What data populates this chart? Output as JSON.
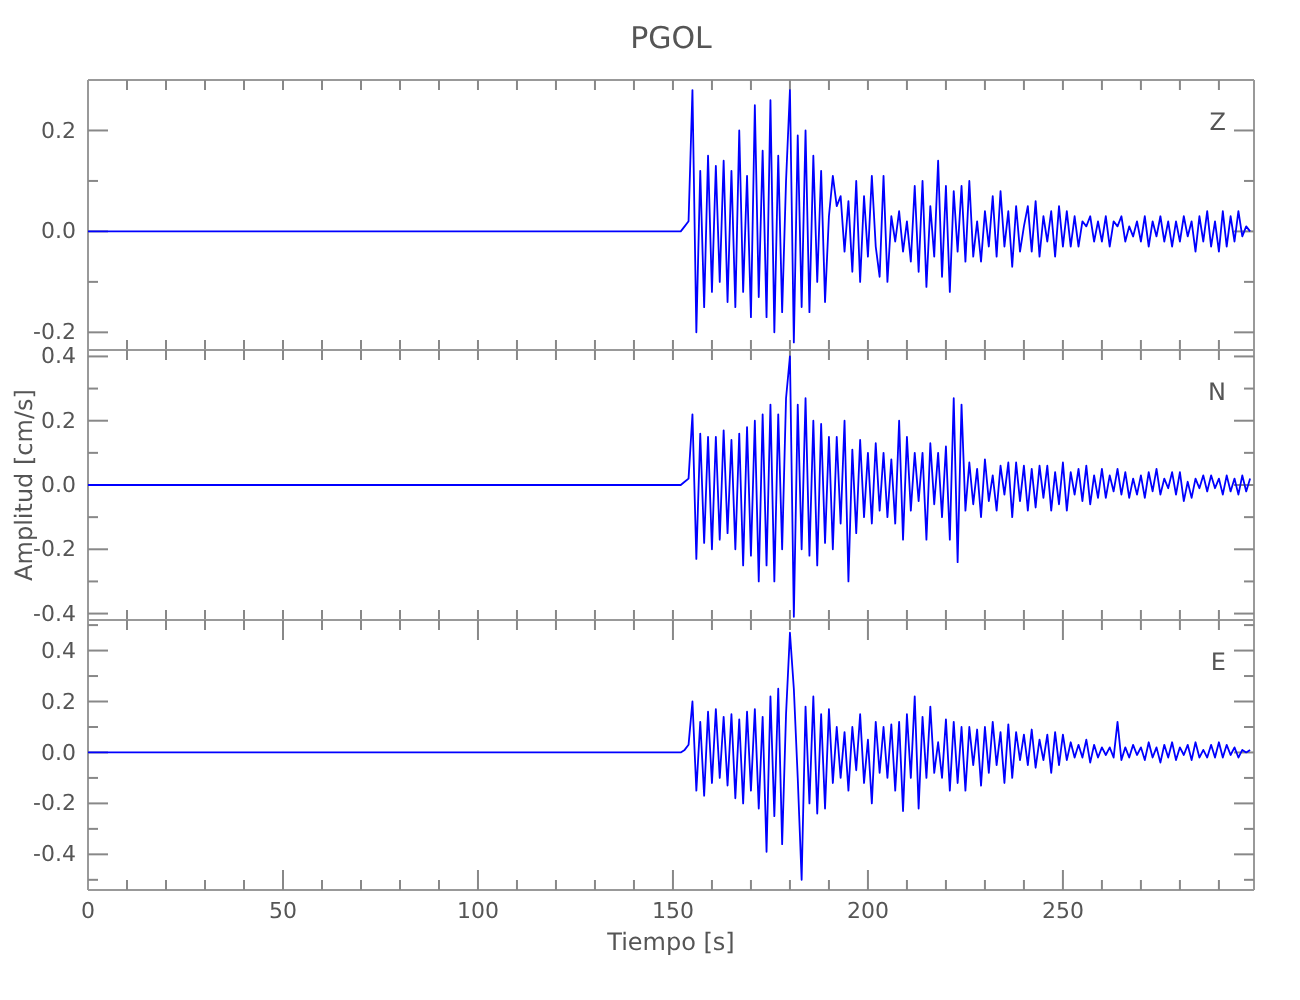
{
  "chart_data": [
    {
      "type": "line",
      "title": "PGOL",
      "annotations": [
        "Z"
      ],
      "tick_labels": "y",
      "xlim": [
        0,
        299
      ],
      "xticks": [
        {
          "value": 0,
          "label": null
        },
        {
          "value": 10,
          "label": null
        },
        {
          "value": 20,
          "label": null
        },
        {
          "value": 30,
          "label": null
        },
        {
          "value": 40,
          "label": null
        },
        {
          "value": 50,
          "label": null
        },
        {
          "value": 60,
          "label": null
        },
        {
          "value": 70,
          "label": null
        },
        {
          "value": 80,
          "label": null
        },
        {
          "value": 90,
          "label": null
        },
        {
          "value": 100,
          "label": null
        },
        {
          "value": 110,
          "label": null
        },
        {
          "value": 120,
          "label": null
        },
        {
          "value": 130,
          "label": null
        },
        {
          "value": 140,
          "label": null
        },
        {
          "value": 150,
          "label": null
        },
        {
          "value": 160,
          "label": null
        },
        {
          "value": 170,
          "label": null
        },
        {
          "value": 180,
          "label": null
        },
        {
          "value": 190,
          "label": null
        },
        {
          "value": 200,
          "label": null
        },
        {
          "value": 210,
          "label": null
        },
        {
          "value": 220,
          "label": null
        },
        {
          "value": 230,
          "label": null
        },
        {
          "value": 240,
          "label": null
        },
        {
          "value": 250,
          "label": null
        },
        {
          "value": 260,
          "label": null
        },
        {
          "value": 270,
          "label": null
        },
        {
          "value": 280,
          "label": null
        },
        {
          "value": 290,
          "label": null
        }
      ],
      "ylim": [
        -0.235,
        0.3
      ],
      "yticks": [
        {
          "value": -0.2,
          "label": "-0.2"
        },
        {
          "value": -0.1,
          "label": null
        },
        {
          "value": 0,
          "label": "0.0"
        },
        {
          "value": 0.1,
          "label": null
        },
        {
          "value": 0.2,
          "label": "0.2"
        }
      ],
      "x": [
        0,
        152,
        153,
        154,
        155,
        156,
        157,
        158,
        159,
        160,
        161,
        162,
        163,
        164,
        165,
        166,
        167,
        168,
        169,
        170,
        171,
        172,
        173,
        174,
        175,
        176,
        177,
        178,
        179,
        180,
        181,
        182,
        183,
        184,
        185,
        186,
        187,
        188,
        189,
        190,
        191,
        192,
        193,
        194,
        195,
        196,
        197,
        198,
        199,
        200,
        201,
        202,
        203,
        204,
        205,
        206,
        207,
        208,
        209,
        210,
        211,
        212,
        213,
        214,
        215,
        216,
        217,
        218,
        219,
        220,
        221,
        222,
        223,
        224,
        225,
        226,
        227,
        228,
        229,
        230,
        231,
        232,
        233,
        234,
        235,
        236,
        237,
        238,
        239,
        240,
        241,
        242,
        243,
        244,
        245,
        246,
        247,
        248,
        249,
        250,
        251,
        252,
        253,
        254,
        255,
        256,
        257,
        258,
        259,
        260,
        261,
        262,
        263,
        264,
        265,
        266,
        267,
        268,
        269,
        270,
        271,
        272,
        273,
        274,
        275,
        276,
        277,
        278,
        279,
        280,
        281,
        282,
        283,
        284,
        285,
        286,
        287,
        288,
        289,
        290,
        291,
        292,
        293,
        294,
        295,
        296,
        297,
        298
      ],
      "series": [
        {
          "color": "#0000ff",
          "values": [
            0,
            0,
            0.01,
            0.02,
            0.28,
            -0.2,
            0.12,
            -0.15,
            0.15,
            -0.12,
            0.13,
            -0.1,
            0.14,
            -0.14,
            0.12,
            -0.15,
            0.2,
            -0.12,
            0.11,
            -0.17,
            0.25,
            -0.13,
            0.16,
            -0.17,
            0.26,
            -0.2,
            0.15,
            -0.16,
            0.1,
            0.28,
            -0.22,
            0.19,
            -0.15,
            0.2,
            -0.16,
            0.15,
            -0.1,
            0.12,
            -0.14,
            0.03,
            0.11,
            0.05,
            0.07,
            -0.04,
            0.06,
            -0.08,
            0.1,
            -0.1,
            0.07,
            -0.05,
            0.11,
            -0.03,
            -0.09,
            0.11,
            -0.1,
            0.03,
            -0.02,
            0.04,
            -0.04,
            0.02,
            -0.06,
            0.09,
            -0.08,
            0.1,
            -0.11,
            0.05,
            -0.05,
            0.14,
            -0.09,
            0.09,
            -0.12,
            0.08,
            -0.04,
            0.09,
            -0.06,
            0.1,
            -0.05,
            0.02,
            -0.06,
            0.04,
            -0.03,
            0.07,
            -0.05,
            0.08,
            -0.03,
            0.04,
            -0.07,
            0.05,
            -0.04,
            0.01,
            0.05,
            -0.04,
            0.06,
            -0.05,
            0.03,
            -0.02,
            0.04,
            -0.05,
            0.05,
            -0.03,
            0.04,
            -0.03,
            0.03,
            -0.03,
            0.02,
            0.01,
            0.03,
            -0.02,
            0.02,
            -0.02,
            0.03,
            -0.03,
            0.02,
            0.01,
            0.03,
            -0.02,
            0.01,
            -0.01,
            0.02,
            -0.02,
            0.03,
            -0.03,
            0.02,
            -0.01,
            0.03,
            -0.02,
            0.02,
            -0.03,
            0.02,
            -0.02,
            0.03,
            -0.01,
            0.02,
            -0.04,
            0.03,
            -0.02,
            0.04,
            -0.03,
            0.02,
            -0.04,
            0.04,
            -0.03,
            0.03,
            -0.02,
            0.04,
            -0.01,
            0.01,
            0
          ]
        }
      ]
    },
    {
      "type": "line",
      "ylabel": "Amplitud [cm/s]",
      "annotations": [
        "N"
      ],
      "tick_labels": "y",
      "xlim": [
        0,
        299
      ],
      "xticks": [
        {
          "value": 0,
          "label": null
        },
        {
          "value": 10,
          "label": null
        },
        {
          "value": 20,
          "label": null
        },
        {
          "value": 30,
          "label": null
        },
        {
          "value": 40,
          "label": null
        },
        {
          "value": 50,
          "label": null
        },
        {
          "value": 60,
          "label": null
        },
        {
          "value": 70,
          "label": null
        },
        {
          "value": 80,
          "label": null
        },
        {
          "value": 90,
          "label": null
        },
        {
          "value": 100,
          "label": null
        },
        {
          "value": 110,
          "label": null
        },
        {
          "value": 120,
          "label": null
        },
        {
          "value": 130,
          "label": null
        },
        {
          "value": 140,
          "label": null
        },
        {
          "value": 150,
          "label": null
        },
        {
          "value": 160,
          "label": null
        },
        {
          "value": 170,
          "label": null
        },
        {
          "value": 180,
          "label": null
        },
        {
          "value": 190,
          "label": null
        },
        {
          "value": 200,
          "label": null
        },
        {
          "value": 210,
          "label": null
        },
        {
          "value": 220,
          "label": null
        },
        {
          "value": 230,
          "label": null
        },
        {
          "value": 240,
          "label": null
        },
        {
          "value": 250,
          "label": null
        },
        {
          "value": 260,
          "label": null
        },
        {
          "value": 270,
          "label": null
        },
        {
          "value": 280,
          "label": null
        },
        {
          "value": 290,
          "label": null
        }
      ],
      "ylim": [
        -0.42,
        0.42
      ],
      "yticks": [
        {
          "value": -0.4,
          "label": "-0.4"
        },
        {
          "value": -0.3,
          "label": null
        },
        {
          "value": -0.2,
          "label": "-0.2"
        },
        {
          "value": -0.1,
          "label": null
        },
        {
          "value": 0,
          "label": "0.0"
        },
        {
          "value": 0.1,
          "label": null
        },
        {
          "value": 0.2,
          "label": "0.2"
        },
        {
          "value": 0.3,
          "label": null
        },
        {
          "value": 0.4,
          "label": "0.4"
        }
      ],
      "x": [
        0,
        152,
        153,
        154,
        155,
        156,
        157,
        158,
        159,
        160,
        161,
        162,
        163,
        164,
        165,
        166,
        167,
        168,
        169,
        170,
        171,
        172,
        173,
        174,
        175,
        176,
        177,
        178,
        179,
        180,
        181,
        182,
        183,
        184,
        185,
        186,
        187,
        188,
        189,
        190,
        191,
        192,
        193,
        194,
        195,
        196,
        197,
        198,
        199,
        200,
        201,
        202,
        203,
        204,
        205,
        206,
        207,
        208,
        209,
        210,
        211,
        212,
        213,
        214,
        215,
        216,
        217,
        218,
        219,
        220,
        221,
        222,
        223,
        224,
        225,
        226,
        227,
        228,
        229,
        230,
        231,
        232,
        233,
        234,
        235,
        236,
        237,
        238,
        239,
        240,
        241,
        242,
        243,
        244,
        245,
        246,
        247,
        248,
        249,
        250,
        251,
        252,
        253,
        254,
        255,
        256,
        257,
        258,
        259,
        260,
        261,
        262,
        263,
        264,
        265,
        266,
        267,
        268,
        269,
        270,
        271,
        272,
        273,
        274,
        275,
        276,
        277,
        278,
        279,
        280,
        281,
        282,
        283,
        284,
        285,
        286,
        287,
        288,
        289,
        290,
        291,
        292,
        293,
        294,
        295,
        296,
        297,
        298
      ],
      "series": [
        {
          "color": "#0000ff",
          "values": [
            0,
            0,
            0.01,
            0.02,
            0.22,
            -0.23,
            0.16,
            -0.18,
            0.15,
            -0.2,
            0.15,
            -0.17,
            0.17,
            -0.15,
            0.14,
            -0.2,
            0.16,
            -0.25,
            0.18,
            -0.22,
            0.2,
            -0.3,
            0.22,
            -0.25,
            0.25,
            -0.3,
            0.22,
            -0.2,
            0.27,
            0.4,
            -0.41,
            0.25,
            -0.2,
            0.27,
            -0.22,
            0.2,
            -0.25,
            0.19,
            -0.18,
            0.15,
            -0.2,
            0.15,
            -0.12,
            0.2,
            -0.3,
            0.11,
            -0.15,
            0.14,
            -0.1,
            0.1,
            -0.12,
            0.13,
            -0.08,
            0.1,
            -0.1,
            0.08,
            -0.12,
            0.2,
            -0.17,
            0.15,
            -0.08,
            0.1,
            -0.05,
            0.1,
            -0.17,
            0.13,
            -0.06,
            0.1,
            -0.1,
            0.12,
            -0.17,
            0.27,
            -0.24,
            0.25,
            -0.08,
            0.07,
            -0.06,
            0.05,
            -0.1,
            0.08,
            -0.05,
            0.03,
            -0.08,
            0.06,
            -0.03,
            0.07,
            -0.1,
            0.07,
            -0.05,
            0.06,
            -0.08,
            0.05,
            -0.07,
            0.06,
            -0.04,
            0.06,
            -0.08,
            0.04,
            -0.06,
            0.07,
            -0.08,
            0.04,
            -0.03,
            0.05,
            -0.05,
            0.06,
            -0.06,
            0.03,
            -0.04,
            0.05,
            -0.04,
            0.03,
            -0.02,
            0.05,
            -0.03,
            0.04,
            -0.04,
            0.02,
            -0.03,
            0.03,
            -0.04,
            0.04,
            -0.02,
            0.05,
            -0.03,
            0.02,
            -0.01,
            0.04,
            -0.03,
            0.04,
            -0.05,
            0.01,
            -0.04,
            0.02,
            -0.01,
            0.03,
            -0.02,
            0.03,
            -0.01,
            0.02,
            -0.03,
            0.03,
            -0.02,
            0.02,
            -0.03,
            0.03,
            -0.02,
            0.02
          ]
        }
      ]
    },
    {
      "type": "line",
      "xlabel": "Tiempo [s]",
      "annotations": [
        "E"
      ],
      "xlim": [
        0,
        299
      ],
      "xticks": [
        {
          "value": 0,
          "label": "0"
        },
        {
          "value": 10,
          "label": null
        },
        {
          "value": 20,
          "label": null
        },
        {
          "value": 30,
          "label": null
        },
        {
          "value": 40,
          "label": null
        },
        {
          "value": 50,
          "label": "50"
        },
        {
          "value": 60,
          "label": null
        },
        {
          "value": 70,
          "label": null
        },
        {
          "value": 80,
          "label": null
        },
        {
          "value": 90,
          "label": null
        },
        {
          "value": 100,
          "label": "100"
        },
        {
          "value": 110,
          "label": null
        },
        {
          "value": 120,
          "label": null
        },
        {
          "value": 130,
          "label": null
        },
        {
          "value": 140,
          "label": null
        },
        {
          "value": 150,
          "label": "150"
        },
        {
          "value": 160,
          "label": null
        },
        {
          "value": 170,
          "label": null
        },
        {
          "value": 180,
          "label": null
        },
        {
          "value": 190,
          "label": null
        },
        {
          "value": 200,
          "label": "200"
        },
        {
          "value": 210,
          "label": null
        },
        {
          "value": 220,
          "label": null
        },
        {
          "value": 230,
          "label": null
        },
        {
          "value": 240,
          "label": null
        },
        {
          "value": 250,
          "label": "250"
        },
        {
          "value": 260,
          "label": null
        },
        {
          "value": 270,
          "label": null
        },
        {
          "value": 280,
          "label": null
        },
        {
          "value": 290,
          "label": null
        }
      ],
      "ylim": [
        -0.54,
        0.52
      ],
      "yticks": [
        {
          "value": -0.5,
          "label": null
        },
        {
          "value": -0.4,
          "label": "-0.4"
        },
        {
          "value": -0.3,
          "label": null
        },
        {
          "value": -0.2,
          "label": "-0.2"
        },
        {
          "value": -0.1,
          "label": null
        },
        {
          "value": 0,
          "label": "0.0"
        },
        {
          "value": 0.1,
          "label": null
        },
        {
          "value": 0.2,
          "label": "0.2"
        },
        {
          "value": 0.3,
          "label": null
        },
        {
          "value": 0.4,
          "label": "0.4"
        },
        {
          "value": 0.5,
          "label": null
        }
      ],
      "x": [
        0,
        152,
        153,
        154,
        155,
        156,
        157,
        158,
        159,
        160,
        161,
        162,
        163,
        164,
        165,
        166,
        167,
        168,
        169,
        170,
        171,
        172,
        173,
        174,
        175,
        176,
        177,
        178,
        179,
        180,
        181,
        182,
        183,
        184,
        185,
        186,
        187,
        188,
        189,
        190,
        191,
        192,
        193,
        194,
        195,
        196,
        197,
        198,
        199,
        200,
        201,
        202,
        203,
        204,
        205,
        206,
        207,
        208,
        209,
        210,
        211,
        212,
        213,
        214,
        215,
        216,
        217,
        218,
        219,
        220,
        221,
        222,
        223,
        224,
        225,
        226,
        227,
        228,
        229,
        230,
        231,
        232,
        233,
        234,
        235,
        236,
        237,
        238,
        239,
        240,
        241,
        242,
        243,
        244,
        245,
        246,
        247,
        248,
        249,
        250,
        251,
        252,
        253,
        254,
        255,
        256,
        257,
        258,
        259,
        260,
        261,
        262,
        263,
        264,
        265,
        266,
        267,
        268,
        269,
        270,
        271,
        272,
        273,
        274,
        275,
        276,
        277,
        278,
        279,
        280,
        281,
        282,
        283,
        284,
        285,
        286,
        287,
        288,
        289,
        290,
        291,
        292,
        293,
        294,
        295,
        296,
        297,
        298
      ],
      "series": [
        {
          "color": "#0000ff",
          "values": [
            0,
            0,
            0.01,
            0.03,
            0.2,
            -0.15,
            0.12,
            -0.17,
            0.16,
            -0.12,
            0.17,
            -0.1,
            0.14,
            -0.13,
            0.15,
            -0.18,
            0.13,
            -0.2,
            0.16,
            -0.15,
            0.17,
            -0.22,
            0.14,
            -0.39,
            0.22,
            -0.25,
            0.25,
            -0.36,
            0.15,
            0.47,
            0.25,
            -0.1,
            -0.5,
            0.18,
            -0.2,
            0.22,
            -0.24,
            0.15,
            -0.22,
            0.17,
            -0.12,
            0.1,
            -0.1,
            0.08,
            -0.15,
            0.1,
            -0.07,
            0.15,
            -0.12,
            0.05,
            -0.2,
            0.12,
            -0.08,
            0.1,
            -0.1,
            0.11,
            -0.15,
            0.12,
            -0.23,
            0.15,
            -0.1,
            0.22,
            -0.22,
            0.14,
            -0.1,
            0.18,
            -0.08,
            0.04,
            -0.1,
            0.13,
            -0.15,
            0.12,
            -0.12,
            0.1,
            -0.15,
            0.1,
            -0.05,
            0.09,
            -0.13,
            0.1,
            -0.08,
            0.12,
            -0.05,
            0.08,
            -0.12,
            0.11,
            -0.1,
            0.08,
            -0.03,
            0.07,
            -0.05,
            0.09,
            -0.06,
            0.05,
            -0.03,
            0.07,
            -0.08,
            0.08,
            -0.05,
            0.07,
            -0.03,
            0.04,
            -0.02,
            0.03,
            -0.02,
            0.05,
            -0.04,
            0.03,
            -0.02,
            0.02,
            -0.01,
            0.02,
            -0.02,
            0.12,
            -0.03,
            0.02,
            -0.02,
            0.03,
            -0.01,
            0.02,
            -0.03,
            0.04,
            -0.02,
            0.02,
            -0.04,
            0.03,
            -0.02,
            0.04,
            -0.03,
            0.02,
            -0.01,
            0.03,
            -0.03,
            0.04,
            -0.02,
            0.01,
            -0.02,
            0.03,
            -0.02,
            0.04,
            -0.02,
            0.03,
            -0.01,
            0.02,
            -0.02,
            0.01,
            0,
            0.01
          ]
        }
      ]
    }
  ]
}
